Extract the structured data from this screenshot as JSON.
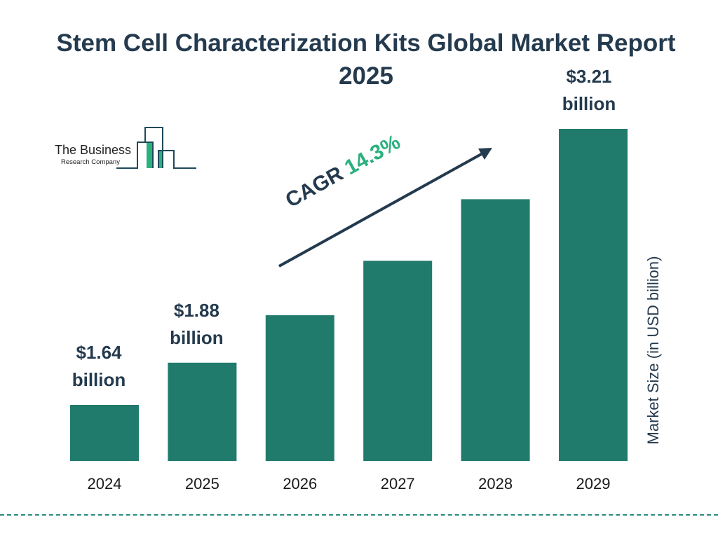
{
  "title": "Stem Cell Characterization Kits Global Market Report 2025",
  "logo": {
    "line1": "The Business",
    "line2": "Research Company"
  },
  "cagr": {
    "label": "CAGR",
    "value": "14.3%"
  },
  "colors": {
    "bar": "#217b6c",
    "title": "#243a4e",
    "accent": "#2bb07f"
  },
  "chart_data": {
    "type": "bar",
    "title": "Stem Cell Characterization Kits Global Market Report 2025",
    "categories": [
      "2024",
      "2025",
      "2026",
      "2027",
      "2028",
      "2029"
    ],
    "values": [
      1.64,
      1.88,
      2.15,
      2.46,
      2.81,
      3.21
    ],
    "data_labels": [
      "$1.64 billion",
      "$1.88 billion",
      "",
      "",
      "",
      "$3.21 billion"
    ],
    "xlabel": "",
    "ylabel": "Market Size (in USD billion)",
    "grid": false,
    "legend": "none"
  }
}
